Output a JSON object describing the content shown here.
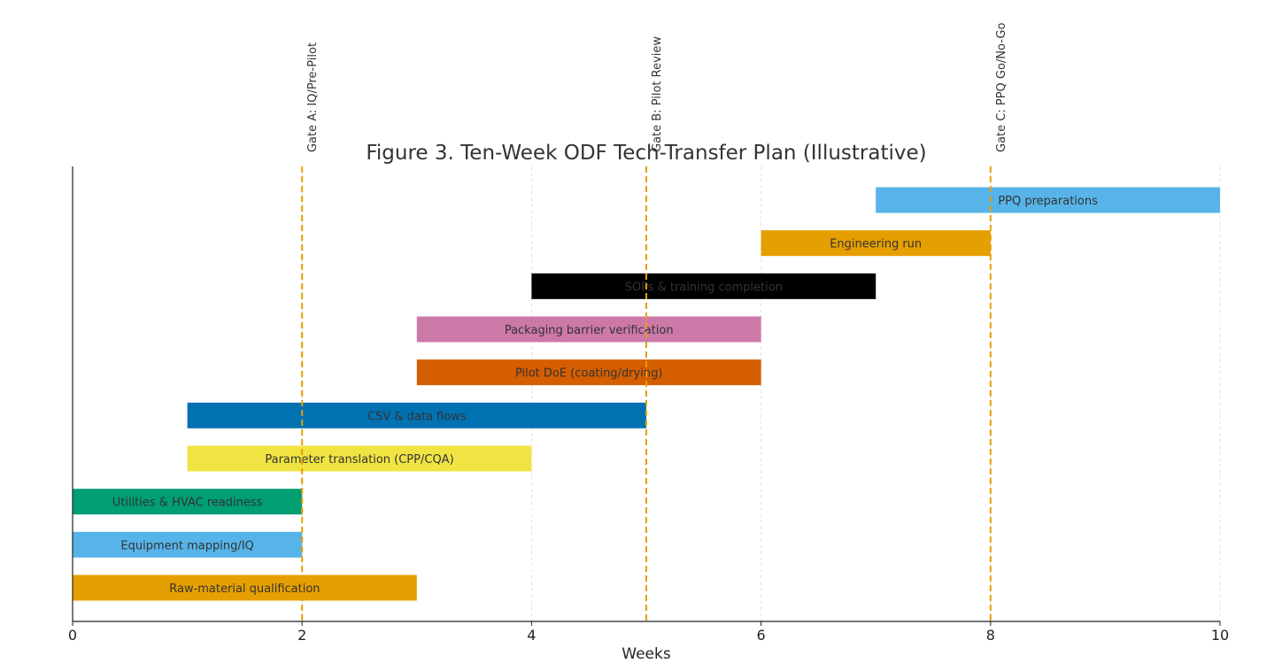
{
  "chart_data": {
    "type": "bar",
    "orientation": "horizontal-gantt",
    "title": "Figure 3. Ten-Week ODF Tech-Transfer Plan (Illustrative)",
    "xlabel": "Weeks",
    "ylabel": "",
    "xlim": [
      0,
      10
    ],
    "xticks": [
      "0",
      "2",
      "4",
      "6",
      "8",
      "10"
    ],
    "grid": "vertical dashed",
    "tasks": [
      {
        "name": "Raw-material qualification",
        "start": 0,
        "end": 3,
        "color": "#E69F00"
      },
      {
        "name": "Equipment mapping/IQ",
        "start": 0,
        "end": 2,
        "color": "#56B4E9"
      },
      {
        "name": "Utilities & HVAC readiness",
        "start": 0,
        "end": 2,
        "color": "#009E73"
      },
      {
        "name": "Parameter translation (CPP/CQA)",
        "start": 1,
        "end": 4,
        "color": "#F0E442"
      },
      {
        "name": "CSV & data flows",
        "start": 1,
        "end": 5,
        "color": "#0072B2"
      },
      {
        "name": "Pilot DoE (coating/drying)",
        "start": 3,
        "end": 6,
        "color": "#D55E00"
      },
      {
        "name": "Packaging barrier verification",
        "start": 3,
        "end": 6,
        "color": "#CC79A7"
      },
      {
        "name": "SOPs & training completion",
        "start": 4,
        "end": 7,
        "color": "#000000"
      },
      {
        "name": "Engineering run",
        "start": 6,
        "end": 8,
        "color": "#E69F00"
      },
      {
        "name": "PPQ preparations",
        "start": 7,
        "end": 10,
        "color": "#56B4E9"
      }
    ],
    "gates": [
      {
        "label": "Gate A: IQ/Pre-Pilot",
        "week": 2
      },
      {
        "label": "Gate B: Pilot Review",
        "week": 5
      },
      {
        "label": "Gate C: PPQ Go/No-Go",
        "week": 8
      }
    ],
    "gate_color": "#E69F00"
  }
}
